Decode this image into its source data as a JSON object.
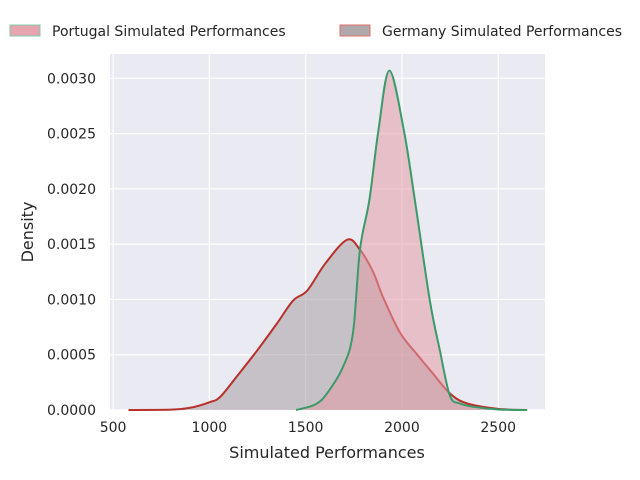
{
  "chart_data": {
    "type": "area",
    "title": "",
    "xlabel": "Simulated Performances",
    "ylabel": "Density",
    "xlim": [
      484,
      2743
    ],
    "ylim": [
      0,
      0.00322
    ],
    "xticks": [
      500,
      1000,
      1500,
      2000,
      2500
    ],
    "xtick_labels": [
      "500",
      "1000",
      "1500",
      "2000",
      "2500"
    ],
    "yticks": [
      0,
      0.0005,
      0.001,
      0.0015,
      0.002,
      0.0025,
      0.003
    ],
    "ytick_labels": [
      "0.0000",
      "0.0005",
      "0.0010",
      "0.0015",
      "0.0020",
      "0.0025",
      "0.0030"
    ],
    "grid": true,
    "legend_placement": "top",
    "series": [
      {
        "name": "Portugal Simulated Performances",
        "fill": "#e39aa6",
        "line": "#3a9a6a",
        "swatch_edge": "#7fcba8",
        "x": [
          1450,
          1550,
          1611,
          1694,
          1746,
          1782,
          1831,
          1878,
          1935,
          2010,
          2067,
          2145,
          2197,
          2249,
          2300,
          2368,
          2500,
          2650
        ],
        "y": [
          0,
          5e-05,
          0.00015,
          0.00039,
          0.0007,
          0.00145,
          0.0019,
          0.00253,
          0.00307,
          0.00253,
          0.0019,
          0.00099,
          0.00054,
          0.00013,
          6e-05,
          3e-05,
          5e-06,
          0
        ]
      },
      {
        "name": "Germany Simulated Performances",
        "fill": "#a89ea2",
        "line": "#b8302a",
        "swatch_edge": "#e07068",
        "x": [
          580,
          800,
          900,
          1000,
          1057,
          1150,
          1249,
          1350,
          1435,
          1508,
          1600,
          1715,
          1782,
          1850,
          1902,
          1990,
          2080,
          2161,
          2249,
          2337,
          2500,
          2650
        ],
        "y": [
          0,
          3e-06,
          2e-05,
          7e-05,
          0.00012,
          0.00032,
          0.00054,
          0.00078,
          0.00099,
          0.00108,
          0.00132,
          0.00154,
          0.00145,
          0.00125,
          0.00102,
          0.0007,
          0.0005,
          0.00033,
          0.00015,
          6e-05,
          1e-05,
          0
        ]
      }
    ]
  }
}
